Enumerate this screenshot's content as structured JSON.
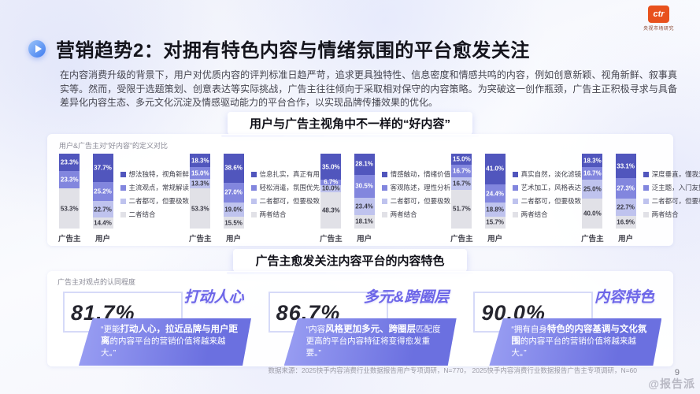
{
  "logo": {
    "text": "ctr",
    "subtext": "央视市场研究"
  },
  "header": {
    "title": "营销趋势2：对拥有特色内容与情绪氛围的平台愈发关注"
  },
  "intro": "在内容消费升级的背景下，用户对优质内容的评判标准日趋严苛，追求更具独特性、信息密度和情感共鸣的内容，例如创意新颖、视角新鲜、叙事真实等。然而，受限于选题策划、创意表达等实际挑战，广告主往往倾向于采取相对保守的内容策略。为突破这一创作瓶颈，广告主正积极寻求与具备差异化内容生态、多元文化沉淀及情感驱动能力的平台合作，以实现品牌传播效果的优化。",
  "section1": {
    "title": "用户与广告主视角中不一样的“好内容”",
    "caption": "用户&广告主对“好内容”的定义对比"
  },
  "section2": {
    "title": "广告主愈发关注内容平台的内容特色",
    "caption": "广告主对观点的认同程度"
  },
  "colors": {
    "dark": "#5156bd",
    "mid": "#8286de",
    "light": "#bfc3ee",
    "gray": "#e1e1e7",
    "accent_orange": "#e8511d",
    "accent_blue": "#3e7bf0",
    "card_purple": "#6b70e0"
  },
  "chart_data": {
    "type": "bar",
    "subtype": "stacked-percent",
    "title": "用户与广告主视角中不一样的“好内容”",
    "bar_labels": [
      "广告主",
      "用户"
    ],
    "palette_order": [
      "dark",
      "mid",
      "light",
      "gray"
    ],
    "ylim": [
      0,
      100
    ],
    "groups": [
      {
        "legend": [
          "想法独特，视角新鲜",
          "主流观点，常规解读",
          "二者都可，但要极致",
          "二者结合"
        ],
        "advertiser": [
          {
            "pct": "23.3%",
            "value": 23.3,
            "tone": "dark"
          },
          {
            "pct": "23.3%",
            "value": 23.3,
            "tone": "mid"
          },
          {
            "pct": "53.3%",
            "value": 53.3,
            "tone": "gray"
          }
        ],
        "user": [
          {
            "pct": "37.7%",
            "value": 37.7,
            "tone": "dark"
          },
          {
            "pct": "25.2%",
            "value": 25.2,
            "tone": "mid"
          },
          {
            "pct": "22.7%",
            "value": 22.7,
            "tone": "light"
          },
          {
            "pct": "14.4%",
            "value": 14.4,
            "tone": "gray"
          }
        ]
      },
      {
        "legend": [
          "信息扎实，真正有用",
          "轻松消遣，氛围优先",
          "二者都可，但要极致",
          "两者结合"
        ],
        "advertiser": [
          {
            "pct": "18.3%",
            "value": 18.3,
            "tone": "dark"
          },
          {
            "pct": "15.0%",
            "value": 15.0,
            "tone": "mid"
          },
          {
            "pct": "13.3%",
            "value": 13.3,
            "tone": "light"
          },
          {
            "pct": "53.3%",
            "value": 53.3,
            "tone": "gray"
          }
        ],
        "user": [
          {
            "pct": "38.6%",
            "value": 38.6,
            "tone": "dark"
          },
          {
            "pct": "27.0%",
            "value": 27.0,
            "tone": "mid"
          },
          {
            "pct": "19.0%",
            "value": 19.0,
            "tone": "light"
          },
          {
            "pct": "15.5%",
            "value": 15.5,
            "tone": "gray"
          }
        ]
      },
      {
        "legend": [
          "情感触动，情绪价值",
          "客观陈述，理性分析",
          "二者都可，但要极致",
          "两者结合"
        ],
        "advertiser": [
          {
            "pct": "35.0%",
            "value": 35.0,
            "tone": "dark"
          },
          {
            "pct": "6.7%",
            "value": 6.7,
            "tone": "mid"
          },
          {
            "pct": "10.0%",
            "value": 10.0,
            "tone": "light"
          },
          {
            "pct": "48.3%",
            "value": 48.3,
            "tone": "gray"
          }
        ],
        "user": [
          {
            "pct": "28.1%",
            "value": 28.1,
            "tone": "dark"
          },
          {
            "pct": "30.5%",
            "value": 30.5,
            "tone": "mid"
          },
          {
            "pct": "23.4%",
            "value": 23.4,
            "tone": "light"
          },
          {
            "pct": "18.1%",
            "value": 18.1,
            "tone": "gray"
          }
        ]
      },
      {
        "legend": [
          "真实自然，淡化滤镜",
          "艺术加工，风格表达",
          "二者都可，但要极致",
          "两者结合"
        ],
        "advertiser": [
          {
            "pct": "15.0%",
            "value": 15.0,
            "tone": "dark"
          },
          {
            "pct": "16.7%",
            "value": 16.7,
            "tone": "mid"
          },
          {
            "pct": "16.7%",
            "value": 16.7,
            "tone": "light"
          },
          {
            "pct": "51.7%",
            "value": 51.7,
            "tone": "gray"
          }
        ],
        "user": [
          {
            "pct": "41.0%",
            "value": 41.0,
            "tone": "dark"
          },
          {
            "pct": "24.4%",
            "value": 24.4,
            "tone": "mid"
          },
          {
            "pct": "18.8%",
            "value": 18.8,
            "tone": "light"
          },
          {
            "pct": "15.7%",
            "value": 15.7,
            "tone": "gray"
          }
        ]
      },
      {
        "legend": [
          "深度垂直，懂我爱好",
          "泛主题，入门友好",
          "二者都可，但要极致",
          "两者结合"
        ],
        "advertiser": [
          {
            "pct": "18.3%",
            "value": 18.3,
            "tone": "dark"
          },
          {
            "pct": "16.7%",
            "value": 16.7,
            "tone": "mid"
          },
          {
            "pct": "25.0%",
            "value": 25.0,
            "tone": "light"
          },
          {
            "pct": "40.0%",
            "value": 40.0,
            "tone": "gray"
          }
        ],
        "user": [
          {
            "pct": "33.1%",
            "value": 33.1,
            "tone": "dark"
          },
          {
            "pct": "27.3%",
            "value": 27.3,
            "tone": "mid"
          },
          {
            "pct": "22.7%",
            "value": 22.7,
            "tone": "light"
          },
          {
            "pct": "16.9%",
            "value": 16.9,
            "tone": "gray"
          }
        ]
      }
    ]
  },
  "cards": [
    {
      "pct": "81.7%",
      "title": "打动人心",
      "quote_pre": "“更能",
      "quote_bold": "打动人心，拉近品牌与用户距离",
      "quote_post": "的内容平台的营销价值将越来越大。”"
    },
    {
      "pct": "86.7%",
      "title": "多元&跨圈层",
      "quote_pre": "“内容",
      "quote_bold": "风格更加多元、跨圈层",
      "quote_post": "匹配度更高的平台内容特征将变得愈发重要。”"
    },
    {
      "pct": "90.0%",
      "title": "内容特色",
      "quote_pre": "“拥有自身",
      "quote_bold": "特色的内容基调与文化氛围",
      "quote_post": "的内容平台的营销价值将越来越大。”"
    }
  ],
  "footer": {
    "source": "数据来源：2025快手内容消费行业数据报告用户专项调研，N=770，  2025快手内容消费行业数据报告广告主专项调研，N=60",
    "page": "9",
    "watermark": "@报告派"
  }
}
